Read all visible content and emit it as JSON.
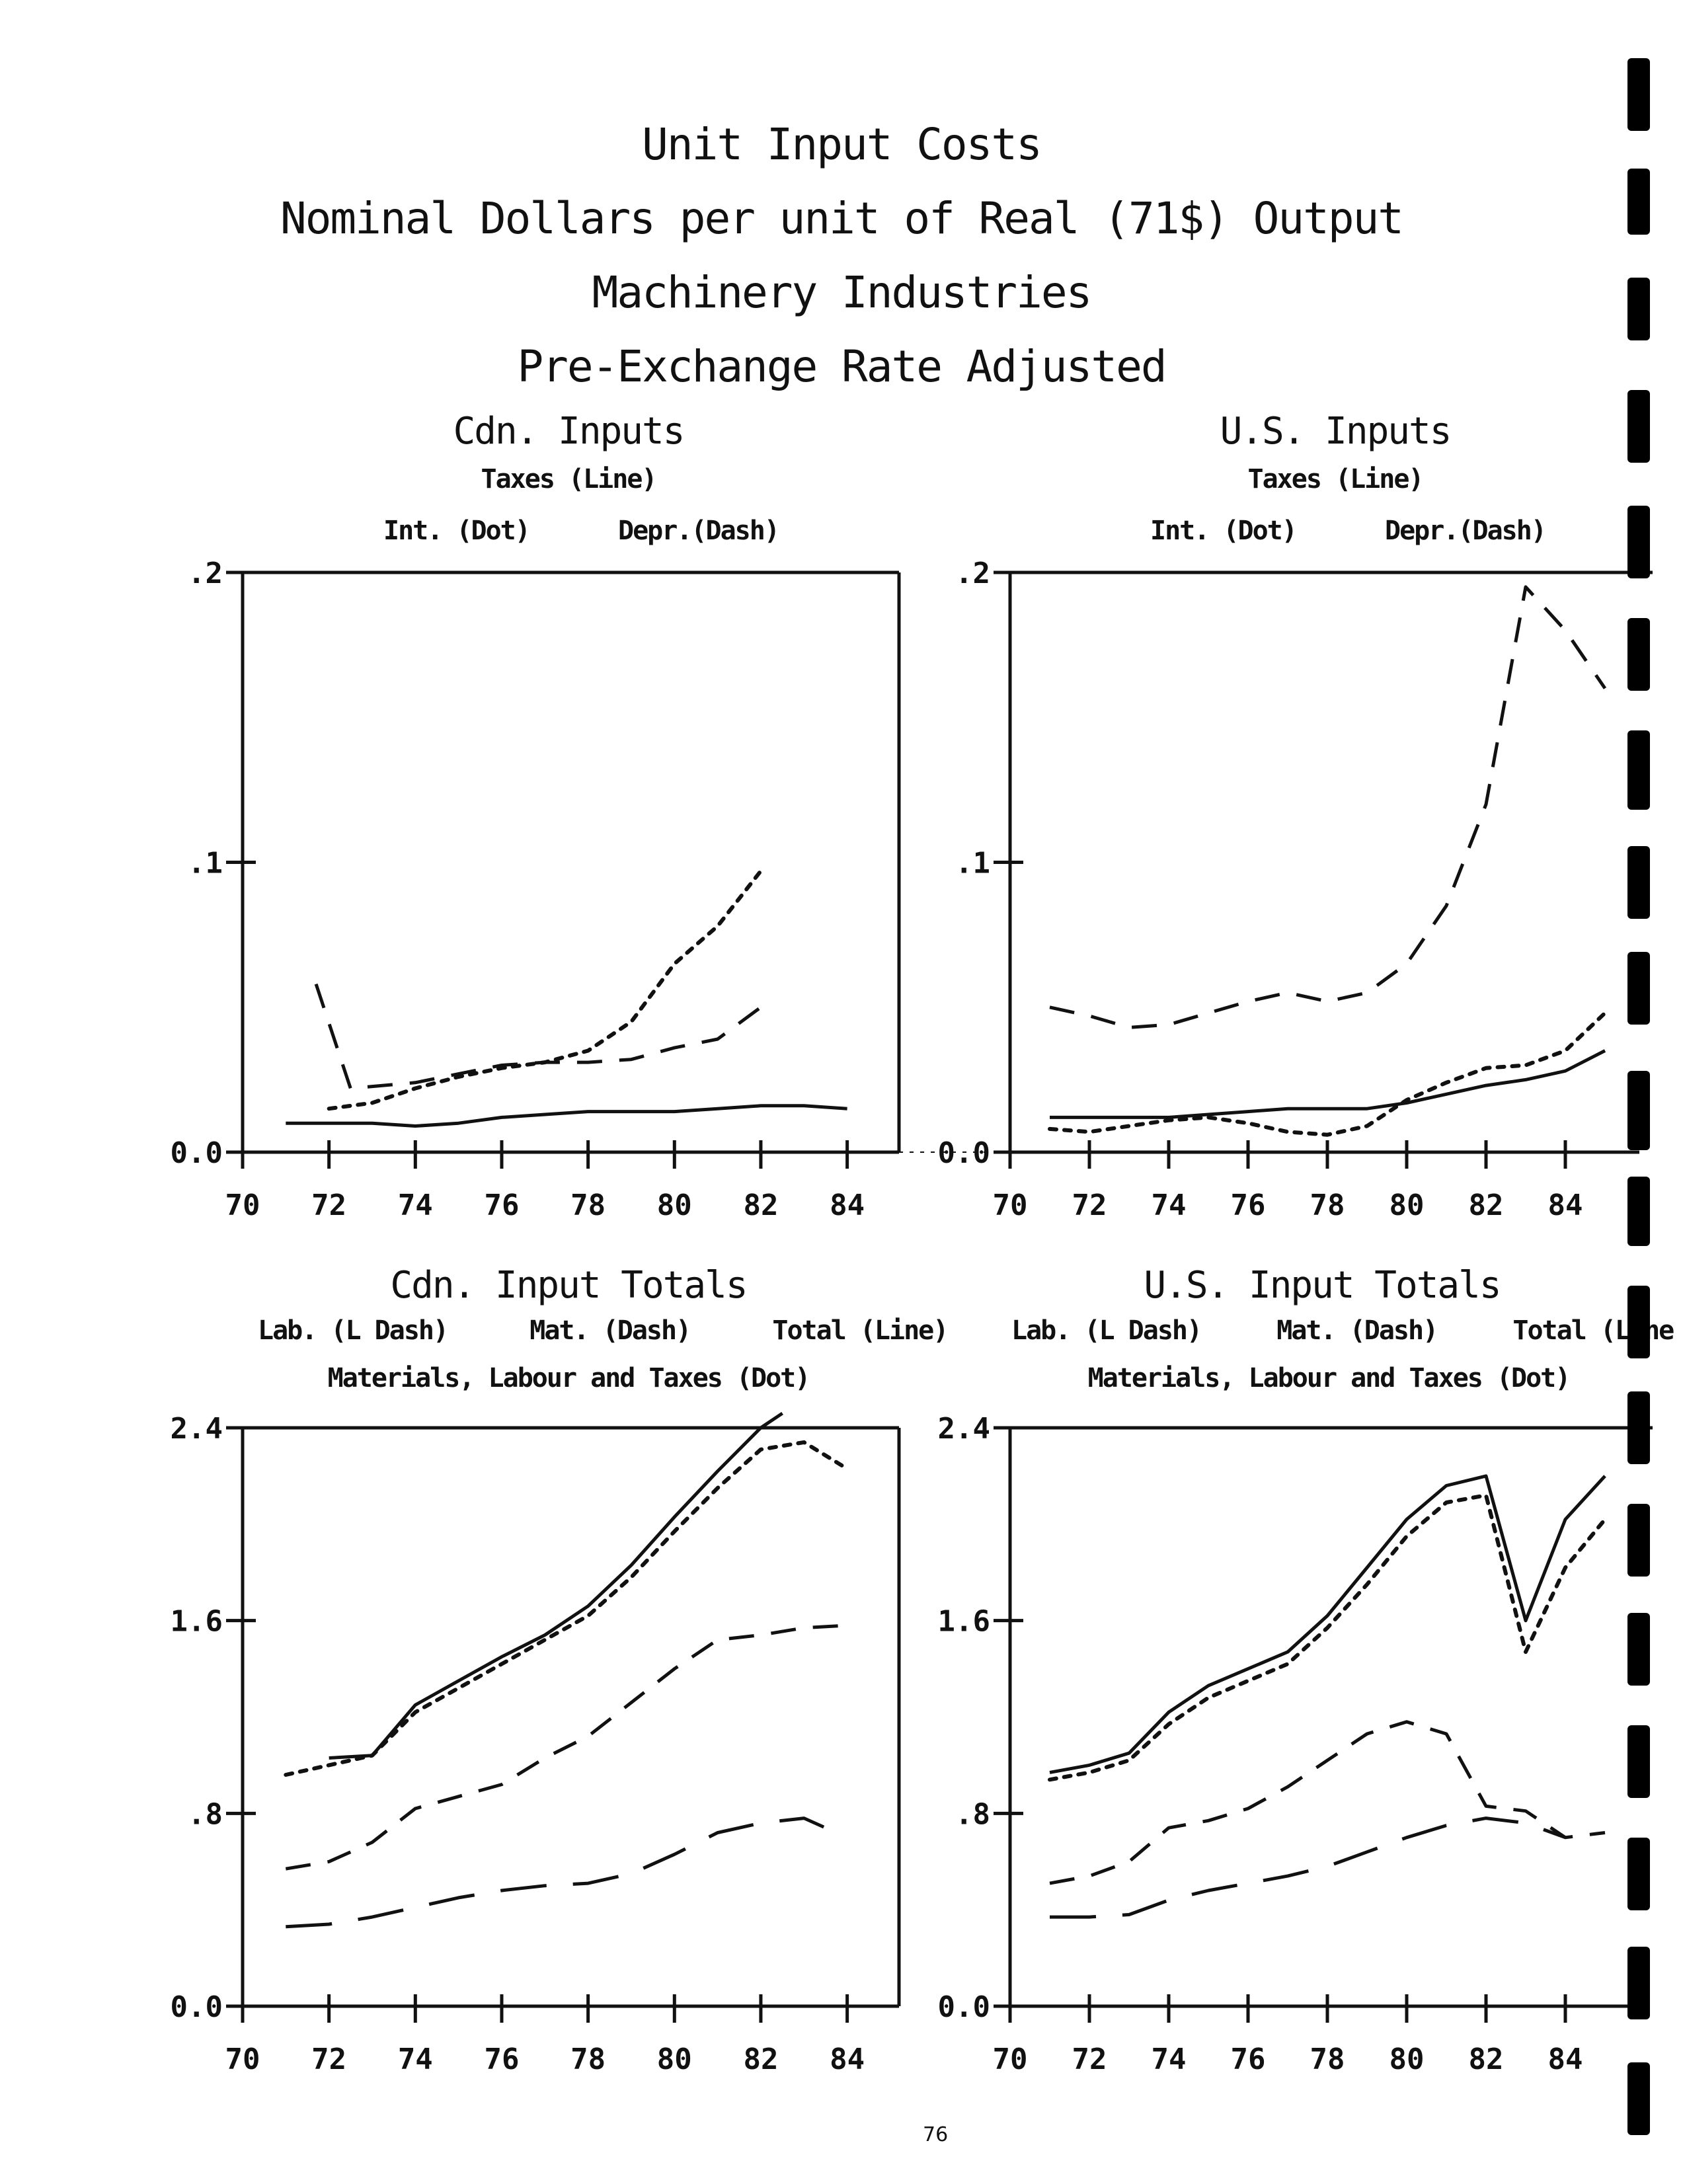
{
  "page_title": {
    "line1": "Unit Input Costs",
    "line2": "Nominal Dollars per unit of Real (71$) Output",
    "line3": "Machinery Industries",
    "line4": "Pre-Exchange Rate Adjusted"
  },
  "page_number": "76",
  "style": {
    "ink": "#111111",
    "background": "#ffffff"
  },
  "chart_data": [
    {
      "id": "cdn_inputs",
      "type": "line",
      "title": "Cdn. Inputs",
      "subtitle": "Taxes (Line)",
      "legend": [
        "Int. (Dot)",
        "Depr.(Dash)"
      ],
      "categories": [
        "70",
        "72",
        "74",
        "76",
        "78",
        "80",
        "82",
        "84"
      ],
      "ylim": [
        0,
        0.2
      ],
      "ytick_labels": [
        "0.0",
        ".1",
        ".2"
      ],
      "grid": false,
      "series": [
        {
          "name": "Taxes (Line)",
          "dash": "solid",
          "x": [
            71,
            72,
            73,
            74,
            75,
            76,
            77,
            78,
            79,
            80,
            81,
            82,
            83,
            84
          ],
          "y": [
            0.01,
            0.01,
            0.01,
            0.009,
            0.01,
            0.012,
            0.013,
            0.014,
            0.014,
            0.014,
            0.015,
            0.016,
            0.016,
            0.015
          ]
        },
        {
          "name": "Int. (Dot)",
          "dash": "dot",
          "x": [
            72,
            73,
            74,
            75,
            76,
            77,
            78,
            79,
            80,
            81,
            82
          ],
          "y": [
            0.015,
            0.017,
            0.022,
            0.026,
            0.029,
            0.031,
            0.035,
            0.045,
            0.065,
            0.078,
            0.097
          ]
        },
        {
          "name": "Depr.(Dash)",
          "dash": "dash",
          "x": [
            71.7,
            72.5,
            74,
            75,
            76,
            77,
            78,
            79,
            80,
            81,
            82
          ],
          "y": [
            0.058,
            0.022,
            0.024,
            0.027,
            0.03,
            0.031,
            0.031,
            0.032,
            0.036,
            0.039,
            0.05
          ]
        }
      ]
    },
    {
      "id": "us_inputs",
      "type": "line",
      "title": "U.S. Inputs",
      "subtitle": "Taxes (Line)",
      "legend": [
        "Int. (Dot)",
        "Depr.(Dash)"
      ],
      "categories": [
        "70",
        "72",
        "74",
        "76",
        "78",
        "80",
        "82",
        "84"
      ],
      "ylim": [
        0,
        0.2
      ],
      "ytick_labels": [
        "0.0",
        ".1",
        ".2"
      ],
      "grid": false,
      "series": [
        {
          "name": "Taxes (Line)",
          "dash": "solid",
          "x": [
            71,
            72,
            73,
            74,
            75,
            76,
            77,
            78,
            79,
            80,
            81,
            82,
            83,
            84,
            85
          ],
          "y": [
            0.012,
            0.012,
            0.012,
            0.012,
            0.013,
            0.014,
            0.015,
            0.015,
            0.015,
            0.017,
            0.02,
            0.023,
            0.025,
            0.028,
            0.035
          ]
        },
        {
          "name": "Int. (Dot)",
          "dash": "dot",
          "x": [
            71,
            72,
            73,
            74,
            75,
            76,
            77,
            78,
            79,
            80,
            81,
            82,
            83,
            84,
            85
          ],
          "y": [
            0.008,
            0.007,
            0.009,
            0.011,
            0.012,
            0.01,
            0.007,
            0.006,
            0.009,
            0.018,
            0.024,
            0.029,
            0.03,
            0.035,
            0.048
          ]
        },
        {
          "name": "Depr.(Dash)",
          "dash": "dash",
          "x": [
            71,
            72,
            73,
            74,
            75,
            76,
            77,
            78,
            79,
            80,
            81,
            82,
            83,
            84,
            85
          ],
          "y": [
            0.05,
            0.047,
            0.043,
            0.044,
            0.048,
            0.052,
            0.055,
            0.052,
            0.055,
            0.065,
            0.085,
            0.12,
            0.195,
            0.18,
            0.16
          ]
        }
      ]
    },
    {
      "id": "cdn_input_totals",
      "type": "line",
      "title": "Cdn. Input Totals",
      "legend": [
        "Lab. (L Dash)",
        "Mat. (Dash)",
        "Total (Line)"
      ],
      "subtitle": "Materials, Labour and Taxes (Dot)",
      "categories": [
        "70",
        "72",
        "74",
        "76",
        "78",
        "80",
        "82",
        "84"
      ],
      "ylim": [
        0,
        2.4
      ],
      "ytick_labels": [
        "0.0",
        ".8",
        "1.6",
        "2.4"
      ],
      "grid": false,
      "series": [
        {
          "name": "Total (Line)",
          "dash": "solid",
          "x": [
            72,
            73,
            74,
            75,
            76,
            77,
            78,
            79,
            80,
            81,
            82,
            82.5
          ],
          "y": [
            1.03,
            1.04,
            1.25,
            1.35,
            1.45,
            1.54,
            1.66,
            1.83,
            2.03,
            2.22,
            2.4,
            2.46
          ]
        },
        {
          "name": "Materials, Labour and Taxes (Dot)",
          "dash": "dot",
          "x": [
            71,
            72,
            73,
            74,
            75,
            76,
            77,
            78,
            79,
            80,
            81,
            82,
            83,
            84
          ],
          "y": [
            0.96,
            1.0,
            1.04,
            1.22,
            1.32,
            1.42,
            1.52,
            1.62,
            1.78,
            1.97,
            2.15,
            2.31,
            2.34,
            2.23
          ]
        },
        {
          "name": "Mat. (Dash)",
          "dash": "dash",
          "x": [
            71,
            72,
            73,
            74,
            75,
            76,
            77,
            78,
            79,
            80,
            81,
            82,
            83,
            84
          ],
          "y": [
            0.57,
            0.6,
            0.68,
            0.82,
            0.87,
            0.92,
            1.03,
            1.12,
            1.26,
            1.4,
            1.52,
            1.54,
            1.57,
            1.58
          ]
        },
        {
          "name": "Lab. (L Dash)",
          "dash": "longdash",
          "x": [
            71,
            72,
            73,
            74,
            75,
            76,
            77,
            78,
            79,
            80,
            81,
            82,
            83,
            83.5
          ],
          "y": [
            0.33,
            0.34,
            0.37,
            0.41,
            0.45,
            0.48,
            0.5,
            0.51,
            0.55,
            0.63,
            0.72,
            0.76,
            0.78,
            0.74
          ]
        }
      ]
    },
    {
      "id": "us_input_totals",
      "type": "line",
      "title": "U.S. Input Totals",
      "legend": [
        "Lab. (L Dash)",
        "Mat. (Dash)",
        "Total (Line"
      ],
      "subtitle": "Materials, Labour and Taxes (Dot)",
      "categories": [
        "70",
        "72",
        "74",
        "76",
        "78",
        "80",
        "82",
        "84"
      ],
      "ylim": [
        0,
        2.4
      ],
      "ytick_labels": [
        "0.0",
        ".8",
        "1.6",
        "2.4"
      ],
      "grid": false,
      "series": [
        {
          "name": "Total (Line",
          "dash": "solid",
          "x": [
            71,
            72,
            73,
            74,
            75,
            76,
            77,
            78,
            79,
            80,
            81,
            82,
            83,
            84,
            85
          ],
          "y": [
            0.97,
            1.0,
            1.05,
            1.22,
            1.33,
            1.4,
            1.47,
            1.62,
            1.82,
            2.02,
            2.16,
            2.2,
            1.6,
            2.02,
            2.2
          ]
        },
        {
          "name": "Materials, Labour and Taxes (Dot)",
          "dash": "dot",
          "x": [
            71,
            72,
            73,
            74,
            75,
            76,
            77,
            78,
            79,
            80,
            81,
            82,
            83,
            84,
            85
          ],
          "y": [
            0.94,
            0.97,
            1.02,
            1.17,
            1.28,
            1.35,
            1.42,
            1.57,
            1.75,
            1.95,
            2.09,
            2.12,
            1.47,
            1.82,
            2.02
          ]
        },
        {
          "name": "Mat. (Dash)",
          "dash": "dash",
          "x": [
            71,
            72,
            73,
            74,
            75,
            76,
            77,
            78,
            79,
            80,
            81,
            82,
            83,
            84,
            85
          ],
          "y": [
            0.51,
            0.54,
            0.6,
            0.74,
            0.77,
            0.82,
            0.91,
            1.02,
            1.13,
            1.18,
            1.13,
            0.83,
            0.81,
            0.7,
            0.72
          ]
        },
        {
          "name": "Lab. (L Dash)",
          "dash": "longdash",
          "x": [
            71,
            72,
            73,
            74,
            75,
            76,
            77,
            78,
            79,
            80,
            81,
            82,
            83,
            84
          ],
          "y": [
            0.37,
            0.37,
            0.38,
            0.44,
            0.48,
            0.51,
            0.54,
            0.58,
            0.64,
            0.7,
            0.75,
            0.78,
            0.76,
            0.7
          ]
        }
      ]
    }
  ]
}
